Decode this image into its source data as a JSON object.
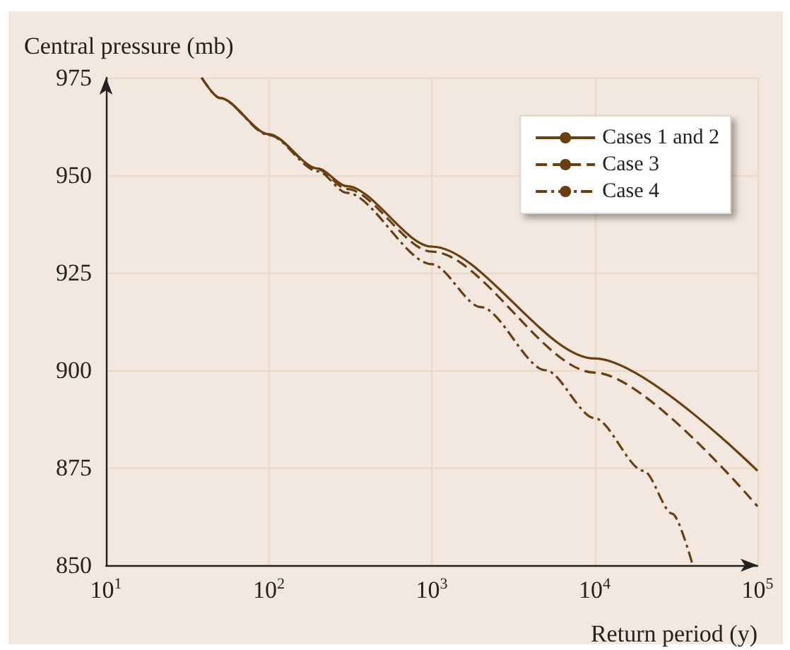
{
  "chart_data": {
    "type": "line",
    "xlabel": "Return period (y)",
    "ylabel": "Central pressure (mb)",
    "log": "x",
    "xlim": [
      10,
      100000
    ],
    "xticks": [
      {
        "value": 10,
        "label": "10$^{1}$"
      },
      {
        "value": 100,
        "label": "10$^{2}$"
      },
      {
        "value": 1000,
        "label": "10$^{3}$"
      },
      {
        "value": 10000,
        "label": "10$^{4}$"
      },
      {
        "value": 100000,
        "label": "10$^{5}$"
      }
    ],
    "ylim": [
      850,
      975
    ],
    "yticks": [
      850,
      875,
      900,
      925,
      950,
      975
    ],
    "grid": true,
    "legend": "top right",
    "marker": "none",
    "series": [
      {
        "name": "Cases 1 and 2",
        "color": "#6b3e0f",
        "line_style": "solid",
        "x": [
          38.7,
          50,
          100,
          200,
          300,
          1000,
          10000,
          100000
        ],
        "values": [
          975,
          969.8,
          960.5,
          951.7,
          947.2,
          931.7,
          903,
          874.2
        ]
      },
      {
        "name": "Case 3",
        "color": "#6b3e0f",
        "line_style": "dashed",
        "x": [
          38.7,
          50,
          100,
          200,
          300,
          1000,
          10000,
          100000
        ],
        "values": [
          975,
          969.8,
          960.5,
          951.5,
          946.5,
          930.4,
          899.4,
          865.1
        ]
      },
      {
        "name": "Case 4",
        "color": "#6b3e0f",
        "line_style": "dashdot",
        "x": [
          38.7,
          50,
          100,
          200,
          300,
          1000,
          2000,
          5000,
          10000,
          20000,
          30000,
          40000
        ],
        "values": [
          975,
          969.8,
          960.3,
          951,
          945.5,
          927.2,
          916.2,
          900,
          887.7,
          874.2,
          863.2,
          850
        ]
      }
    ]
  }
}
